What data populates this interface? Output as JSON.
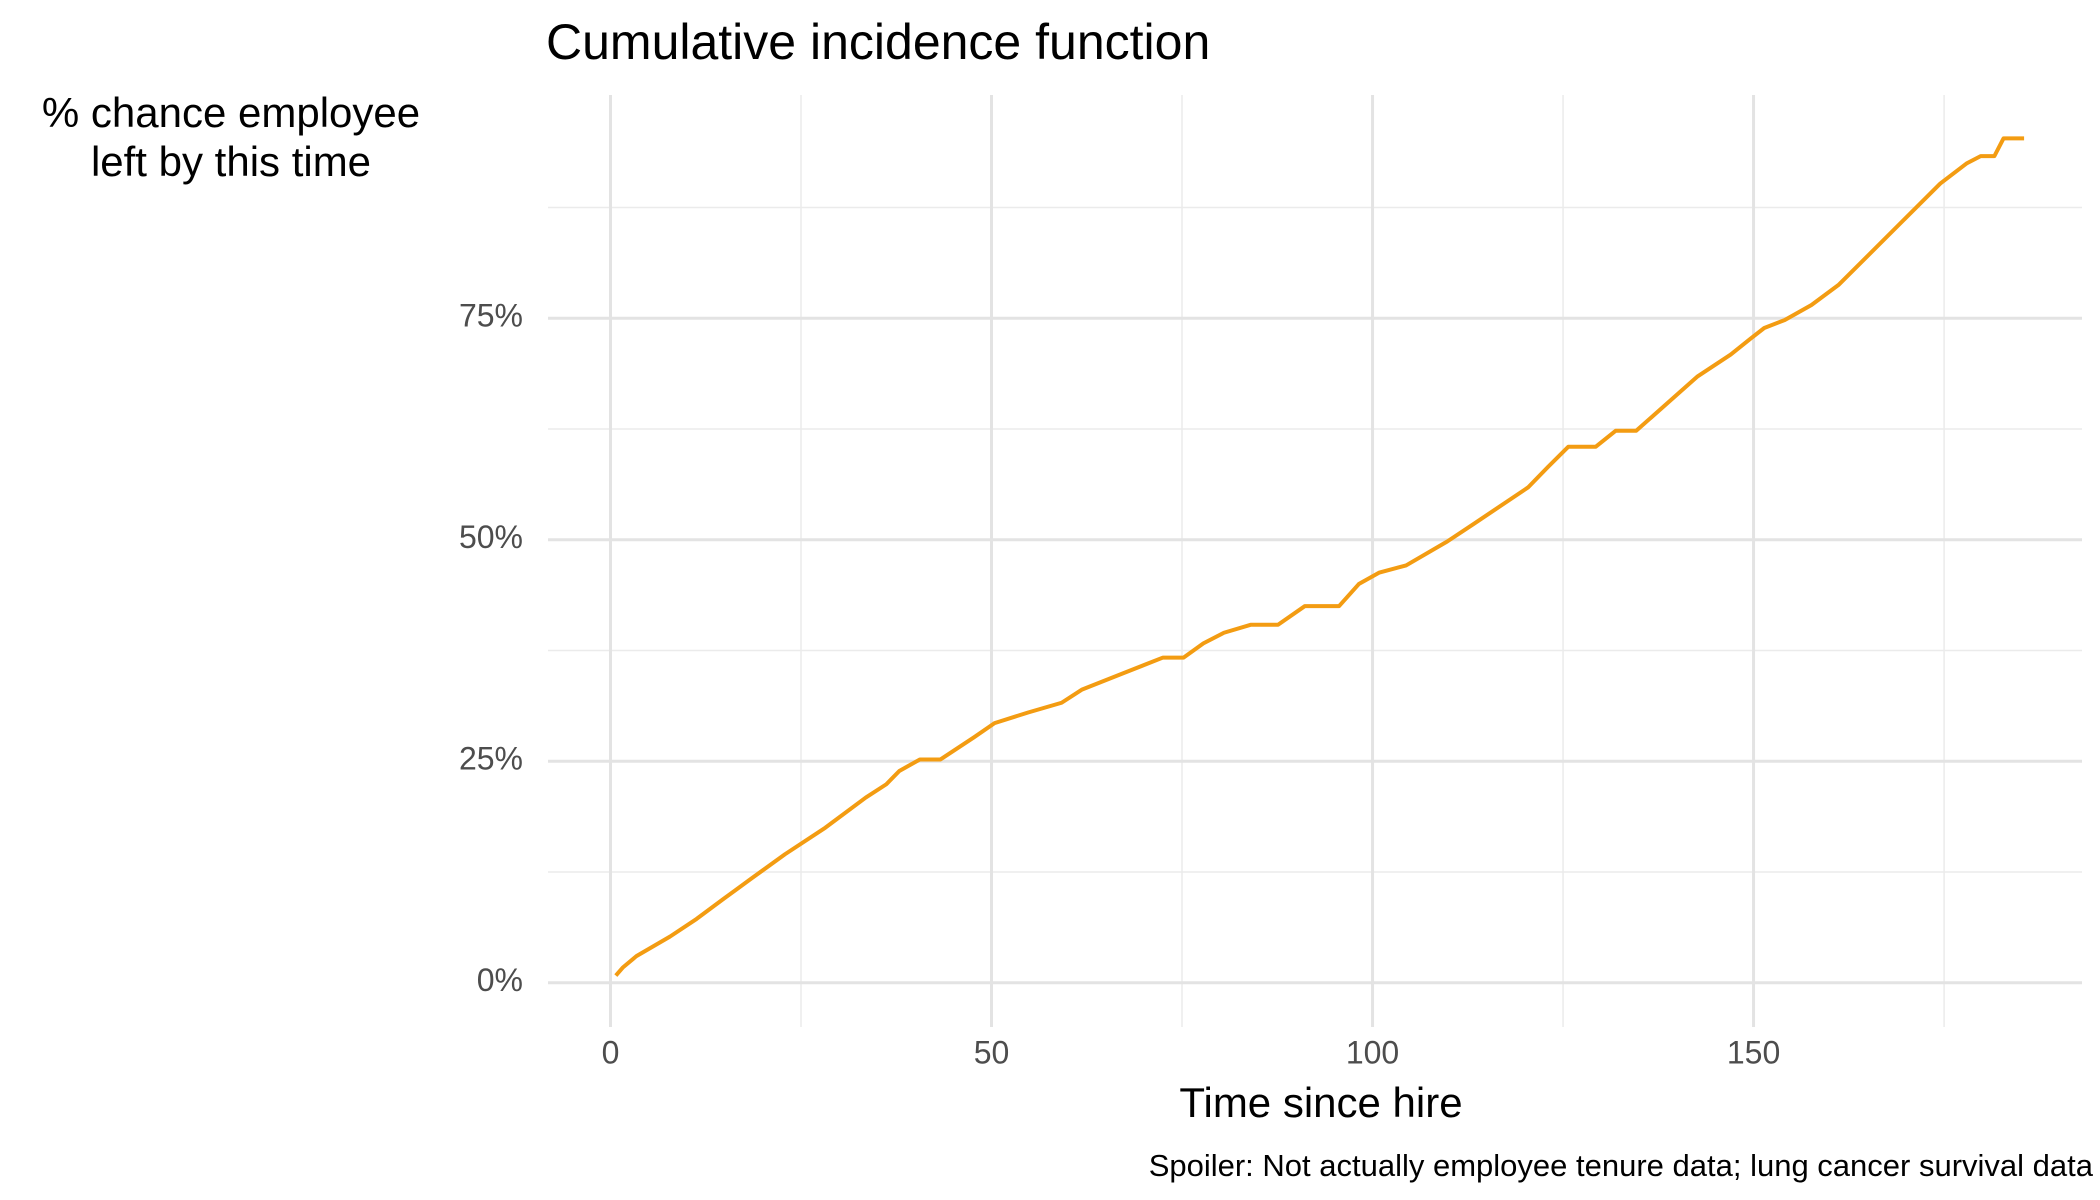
{
  "chart_data": {
    "type": "line",
    "title": "Cumulative incidence function",
    "y_label_lines": [
      "% chance employee",
      "left by this time"
    ],
    "x_label": "Time since hire",
    "caption": "Spoiler: Not actually employee tenure data; lung cancer survival data",
    "xlim": [
      -8.2,
      193.1
    ],
    "ylim": [
      -5.0,
      100.2
    ],
    "xticks": [
      0,
      50,
      100,
      150
    ],
    "yticks": [
      {
        "value": 0,
        "label": "0%"
      },
      {
        "value": 25,
        "label": "25%"
      },
      {
        "value": 50,
        "label": "50%"
      },
      {
        "value": 75,
        "label": "75%"
      }
    ],
    "x_minor_grid": [
      25,
      75,
      125,
      175
    ],
    "y_minor_grid": [
      12.5,
      37.5,
      62.5,
      87.5
    ],
    "grid": true,
    "series": [
      {
        "color": "#f39c12",
        "x": [
          0.7,
          1.6,
          3.4,
          7.8,
          11.3,
          14.9,
          18.4,
          22.9,
          28.2,
          33.5,
          36.2,
          37.9,
          40.6,
          43.3,
          47.7,
          50.4,
          54.8,
          59.2,
          61.9,
          67.2,
          72.5,
          75.2,
          77.8,
          80.5,
          84.0,
          87.6,
          91.1,
          95.6,
          98.2,
          100.9,
          104.4,
          109.8,
          113.3,
          120.4,
          123.0,
          125.7,
          129.3,
          131.9,
          134.6,
          142.6,
          147.0,
          149.6,
          151.4,
          154.1,
          157.6,
          161.2,
          174.5,
          178.0,
          179.8,
          181.6,
          182.8,
          185.5
        ],
        "values": [
          0.8,
          1.7,
          3.0,
          5.2,
          7.2,
          9.5,
          11.7,
          14.5,
          17.5,
          20.9,
          22.4,
          23.9,
          25.2,
          25.2,
          27.7,
          29.3,
          30.5,
          31.6,
          33.1,
          34.9,
          36.7,
          36.7,
          38.3,
          39.5,
          40.4,
          40.4,
          42.5,
          42.5,
          45.0,
          46.3,
          47.1,
          49.8,
          51.8,
          55.9,
          58.2,
          60.5,
          60.5,
          62.3,
          62.3,
          68.4,
          70.9,
          72.7,
          73.9,
          74.8,
          76.5,
          78.8,
          90.2,
          92.5,
          93.3,
          93.3,
          95.3,
          95.3
        ]
      }
    ]
  }
}
